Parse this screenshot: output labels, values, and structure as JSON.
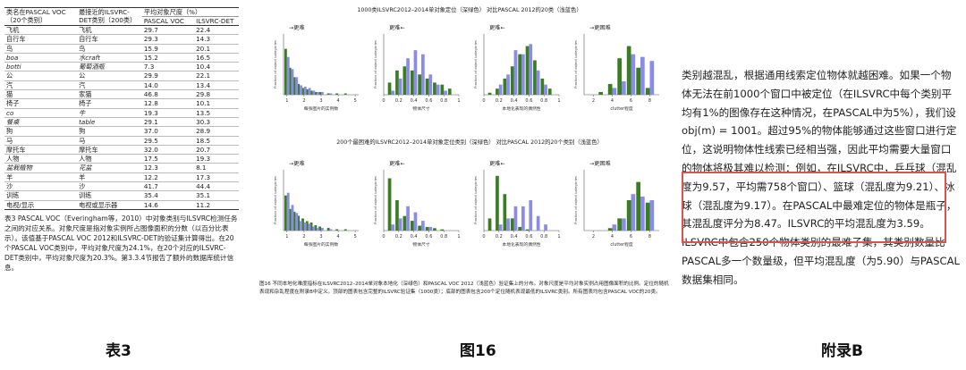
{
  "table3": {
    "header_col1": "类名在PASCAL VOC（20个类别）",
    "header_col2": "最接近的ILSVRC-DET类别（200类）",
    "header_group": "平均对象尺度（%）",
    "header_col3": "PASCAL VOC",
    "header_col4": "ILSVRC-DET",
    "rows": [
      {
        "pascal": "飞机",
        "ilsvrc": "飞机",
        "voc": "29.7",
        "det": "22.4",
        "italic": false
      },
      {
        "pascal": "自行车",
        "ilsvrc": "自行车",
        "voc": "29.3",
        "det": "14.3",
        "italic": false
      },
      {
        "pascal": "鸟",
        "ilsvrc": "鸟",
        "voc": "15.9",
        "det": "20.1",
        "italic": false
      },
      {
        "pascal": "boa",
        "ilsvrc": "水craft",
        "voc": "15.2",
        "det": "16.5",
        "italic": true
      },
      {
        "pascal": "botti",
        "ilsvrc": "葡萄酒瓶",
        "voc": "7.3",
        "det": "10.4",
        "italic": true
      },
      {
        "pascal": "公",
        "ilsvrc": "公",
        "voc": "29.9",
        "det": "22.1",
        "italic": false
      },
      {
        "pascal": "汽",
        "ilsvrc": "汽",
        "voc": "14.0",
        "det": "13.4",
        "italic": false
      },
      {
        "pascal": "猫",
        "ilsvrc": "家猫",
        "voc": "46.8",
        "det": "29.8",
        "italic": false
      },
      {
        "pascal": "椅子",
        "ilsvrc": "椅子",
        "voc": "12.8",
        "det": "10.1",
        "italic": false
      },
      {
        "pascal": "co",
        "ilsvrc": "牛",
        "voc": "19.3",
        "det": "13.5",
        "italic": true
      },
      {
        "pascal": "餐桌",
        "ilsvrc": "table",
        "voc": "29.1",
        "det": "30.3",
        "italic": true
      },
      {
        "pascal": "狗",
        "ilsvrc": "狗",
        "voc": "37.0",
        "det": "28.9",
        "italic": false
      },
      {
        "pascal": "马",
        "ilsvrc": "马",
        "voc": "29.5",
        "det": "18.5",
        "italic": false
      },
      {
        "pascal": "摩托车",
        "ilsvrc": "摩托车",
        "voc": "32.0",
        "det": "20.7",
        "italic": false
      },
      {
        "pascal": "人物",
        "ilsvrc": "人物",
        "voc": "17.5",
        "det": "19.3",
        "italic": false
      },
      {
        "pascal": "盆栽植物",
        "ilsvrc": "花盆",
        "voc": "12.3",
        "det": "8.1",
        "italic": true
      },
      {
        "pascal": "羊",
        "ilsvrc": "羊",
        "voc": "12.2",
        "det": "17.3",
        "italic": false
      },
      {
        "pascal": "沙",
        "ilsvrc": "沙",
        "voc": "41.7",
        "det": "44.4",
        "italic": false
      },
      {
        "pascal": "训练",
        "ilsvrc": "训练",
        "voc": "35.4",
        "det": "35.1",
        "italic": false
      },
      {
        "pascal": "电视/显示",
        "ilsvrc": "电视或显示器",
        "voc": "14.6",
        "det": "11.2",
        "italic": false
      }
    ],
    "caption": "表3 PASCAL VOC（Everingham等，2010）中对象类别与ILSVRC检测任务之间的对应关系。对象尺度是指对象实例所占图像面积的分数（以百分比表示）。该值基于PASCAL VOC 2012和ILSVRC-DET的验证集计算得出。在20个PASCAL VOC类别中，平均对象尺度为24.1%，在20个对应的ILSVRC-DET类别中，平均对象尺度为20.3%。第3.3.4节报告了额外的数据库统计信息。"
  },
  "figure16": {
    "top_title": "1000类ILSVRC2012–2014单对象定位（深绿色） 对比PASCAL 2012的20类（浅蓝色）",
    "bottom_title": "200个最困难的ILSVRC2012–2014单对象定位类别（深绿色） 对比PASCAL 2012的20个类别（浅蓝色）",
    "ylabel": "Fraction of object categories",
    "harder_right": "→更难",
    "harder_left": "更难←",
    "caption": "图16 不同本地化难度指标在ILSVRC2012–2014单对象本地化（深绿色）和PASCAL VOC 2012（浅蓝色）验证集上的分布。对象尺度是平均对象实例占用图像面积的比例。定位的随机表现和杂乱程度在附录B中定义。顶部的图表包含完整的ILSVRC验证集（1000类）；底部的图表包含200个定位随机表现最低的ILSVRC类别。所有图表均包含PASCAL VOC的20类。",
    "colors": {
      "ilsvrc": "#3a7d22",
      "pascal": "#8b8be8"
    },
    "panels": [
      {
        "xlabel": "每张图片的实例数",
        "ticks": [
          "1",
          "2",
          "3",
          "4",
          "5"
        ],
        "arrow": "→更难"
      },
      {
        "xlabel": "物体尺寸",
        "ticks": [
          "0",
          "0.2",
          "0.4",
          "0.6",
          "0.8",
          "1"
        ],
        "arrow": "更难←"
      },
      {
        "xlabel": "本地化表现的偶然性",
        "ticks": [
          "0",
          "0.2",
          "0.4",
          "0.6",
          "0.8",
          "1"
        ],
        "arrow": "更难←"
      },
      {
        "xlabel": "clutter程度",
        "ticks": [
          "2",
          "4",
          "6",
          "8"
        ],
        "arrow": "→更困难"
      }
    ]
  },
  "chart_data": [
    {
      "type": "bar",
      "title": "1000类ILSVRC2012–2014单对象定位（深绿色） 对比PASCAL 2012的20类（浅蓝色）",
      "xlabel": "每张图片的实例数",
      "ylabel": "Fraction of object categories",
      "ylim": [
        0,
        0.45
      ],
      "x": [
        1,
        1.25,
        1.5,
        1.75,
        2,
        2.25,
        2.5,
        2.75,
        3,
        3.5,
        4,
        4.5
      ],
      "series": [
        {
          "values": [
            0.34,
            0.2,
            0.13,
            0.08,
            0.05,
            0.04,
            0.03,
            0.02,
            0.02,
            0.01,
            0.01,
            0.01
          ]
        },
        {
          "values": [
            0.28,
            0.19,
            0.13,
            0.07,
            0.06,
            0.05,
            0.03,
            0.02,
            0.02,
            0.01,
            0.0,
            0.0
          ]
        }
      ]
    },
    {
      "type": "bar",
      "xlabel": "物体尺寸",
      "ylabel": "Fraction of object categories",
      "ylim": [
        0,
        0.3
      ],
      "x": [
        0.1,
        0.2,
        0.3,
        0.4,
        0.5,
        0.6,
        0.7,
        0.8,
        0.9
      ],
      "series": [
        {
          "values": [
            0.06,
            0.12,
            0.14,
            0.12,
            0.1,
            0.08,
            0.06,
            0.05,
            0.03
          ]
        },
        {
          "values": [
            0.02,
            0.08,
            0.18,
            0.22,
            0.2,
            0.1,
            0.05,
            0.02,
            0.0
          ]
        }
      ]
    },
    {
      "type": "bar",
      "xlabel": "本地化表现的偶然性",
      "ylabel": "Fraction of object categories",
      "ylim": [
        0,
        0.3
      ],
      "x": [
        0.1,
        0.2,
        0.3,
        0.4,
        0.5,
        0.6,
        0.7,
        0.8,
        0.9
      ],
      "series": [
        {
          "values": [
            0.01,
            0.03,
            0.08,
            0.14,
            0.2,
            0.24,
            0.17,
            0.08,
            0.03
          ]
        },
        {
          "values": [
            0.0,
            0.05,
            0.1,
            0.22,
            0.2,
            0.25,
            0.12,
            0.05,
            0.0
          ]
        }
      ]
    },
    {
      "type": "bar",
      "xlabel": "clutter程度",
      "ylabel": "Fraction of object categories",
      "ylim": [
        0,
        0.45
      ],
      "x": [
        2,
        3,
        4,
        5,
        6,
        7,
        8
      ],
      "series": [
        {
          "values": [
            0.0,
            0.02,
            0.08,
            0.27,
            0.36,
            0.2,
            0.05
          ]
        },
        {
          "values": [
            0.0,
            0.0,
            0.05,
            0.1,
            0.3,
            0.28,
            0.25
          ]
        }
      ]
    },
    {
      "type": "bar",
      "title": "200个最困难的ILSVRC2012–2014单对象定位类别（深绿色） 对比PASCAL 2012的20个类别（浅蓝色）",
      "xlabel": "每张图片的实例数",
      "ylabel": "Fraction of object categories",
      "ylim": [
        0,
        0.45
      ],
      "x": [
        1,
        1.25,
        1.5,
        1.75,
        2,
        2.25,
        2.5,
        2.75,
        3,
        3.5,
        4,
        4.5
      ],
      "series": [
        {
          "values": [
            0.26,
            0.16,
            0.14,
            0.11,
            0.09,
            0.07,
            0.06,
            0.04,
            0.03,
            0.02,
            0.01,
            0.01
          ]
        },
        {
          "values": [
            0.28,
            0.19,
            0.13,
            0.07,
            0.06,
            0.05,
            0.03,
            0.02,
            0.02,
            0.01,
            0.0,
            0.0
          ]
        }
      ]
    },
    {
      "type": "bar",
      "xlabel": "物体尺寸",
      "ylabel": "Fraction of object categories",
      "ylim": [
        0,
        0.5
      ],
      "x": [
        0.1,
        0.2,
        0.3,
        0.4,
        0.5,
        0.6,
        0.7,
        0.8,
        0.9
      ],
      "series": [
        {
          "values": [
            0.43,
            0.25,
            0.12,
            0.08,
            0.04,
            0.03,
            0.02,
            0.01,
            0.0
          ]
        },
        {
          "values": [
            0.05,
            0.1,
            0.2,
            0.15,
            0.08,
            0.03,
            0.0,
            0.0,
            0.0
          ]
        }
      ]
    },
    {
      "type": "bar",
      "xlabel": "本地化表现的偶然性",
      "ylabel": "Fraction of object categories",
      "ylim": [
        0,
        0.5
      ],
      "x": [
        0.1,
        0.2,
        0.3,
        0.4,
        0.5,
        0.6,
        0.7,
        0.8,
        0.9
      ],
      "series": [
        {
          "values": [
            0.1,
            0.45,
            0.3,
            0.1,
            0.03,
            0.01,
            0.0,
            0.0,
            0.0
          ]
        },
        {
          "values": [
            0.0,
            0.05,
            0.1,
            0.2,
            0.2,
            0.25,
            0.12,
            0.05,
            0.0
          ]
        }
      ]
    },
    {
      "type": "bar",
      "xlabel": "clutter程度",
      "ylabel": "Fraction of object categories",
      "ylim": [
        0,
        0.5
      ],
      "x": [
        2,
        3,
        4,
        5,
        6,
        7,
        8
      ],
      "series": [
        {
          "values": [
            0.0,
            0.0,
            0.02,
            0.1,
            0.25,
            0.4,
            0.23
          ]
        },
        {
          "values": [
            0.0,
            0.0,
            0.05,
            0.1,
            0.3,
            0.28,
            0.25
          ]
        }
      ]
    }
  ],
  "appendix": {
    "before": "类别越混乱，根据通用线索定位物体就越困难。如果一个物体无法在前1000个窗口中被定位（在ILSVRC中每个类别平均有1%的图像存在这种情况，在PASCAL中为5%），我们设obj(m) = 1001。超过95%的物体能够通过这些窗口进行定位，这说明物体性线索已经相当强，因此平均需要大量窗口的物体将极其难以检",
    "highlight": "测：例如，在ILSVRC中，乒乓球（混乱度为9.57，平均需758个窗口）、篮球（混乱度为9.21）、冰球（混乱度为9.17）。在PASCAL中最难定位的物体是瓶子，其混乱度评分为8.47。ILSVRC的平均混乱度为3.59。",
    "after": "ILSVRC中包含250个物体类别的最难子集，其类别数量比PASCAL多一个数量级，但平均混乱度（为5.90）与PASCAL数据集相同。"
  },
  "labels": {
    "table": "表3",
    "figure": "图16",
    "appendix": "附录B"
  }
}
